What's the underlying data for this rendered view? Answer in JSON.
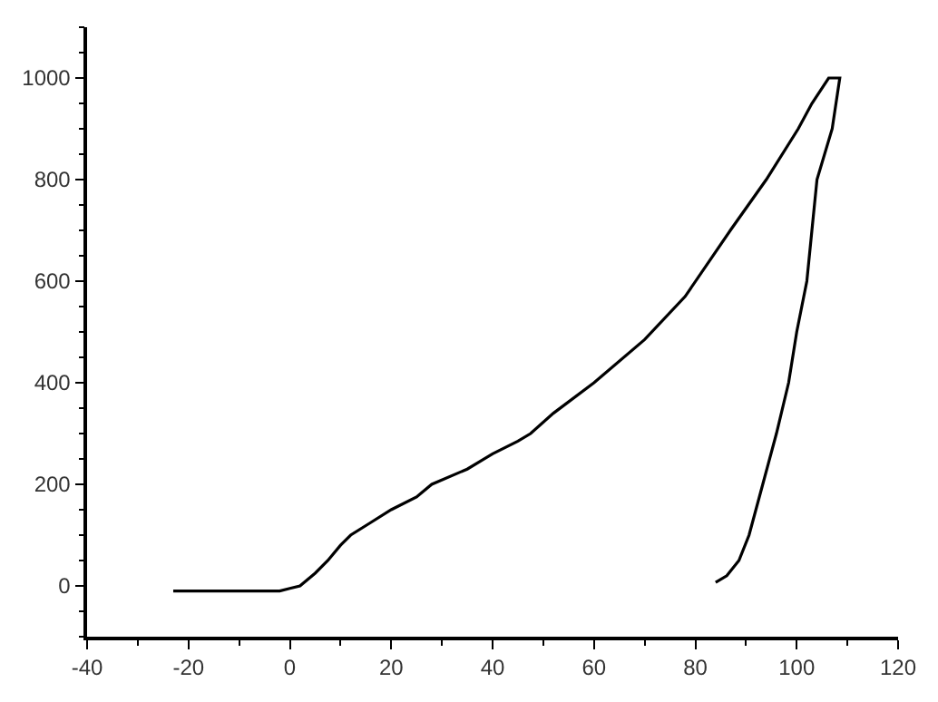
{
  "chart_data": {
    "type": "line",
    "xlim": [
      -40,
      120
    ],
    "ylim": [
      -100,
      1100
    ],
    "xticks": [
      -40,
      -20,
      0,
      20,
      40,
      60,
      80,
      100,
      120
    ],
    "yticks": [
      0,
      200,
      400,
      600,
      800,
      1000
    ],
    "marker": "none",
    "line_style": "solid",
    "series": [
      {
        "color": "#000000",
        "x": [
          -23,
          -2,
          0,
          2,
          5,
          7.5,
          10,
          12,
          16,
          20,
          25,
          28,
          35,
          40,
          45,
          47.5,
          52,
          60,
          70,
          78,
          86.9,
          94,
          100.3,
          103,
          106.3,
          108.5,
          107,
          104,
          102,
          100,
          98.4,
          96,
          93.3,
          90.6,
          88.6,
          86.2,
          84
        ],
        "values": [
          -10,
          -10,
          -5,
          0,
          25,
          50,
          80,
          100,
          125,
          150,
          175,
          200,
          230,
          260,
          285,
          300,
          340,
          400,
          485,
          570,
          700,
          800,
          900,
          950,
          1000,
          1000,
          900,
          800,
          600,
          500,
          400,
          300,
          200,
          100,
          50,
          20,
          7
        ]
      }
    ]
  }
}
